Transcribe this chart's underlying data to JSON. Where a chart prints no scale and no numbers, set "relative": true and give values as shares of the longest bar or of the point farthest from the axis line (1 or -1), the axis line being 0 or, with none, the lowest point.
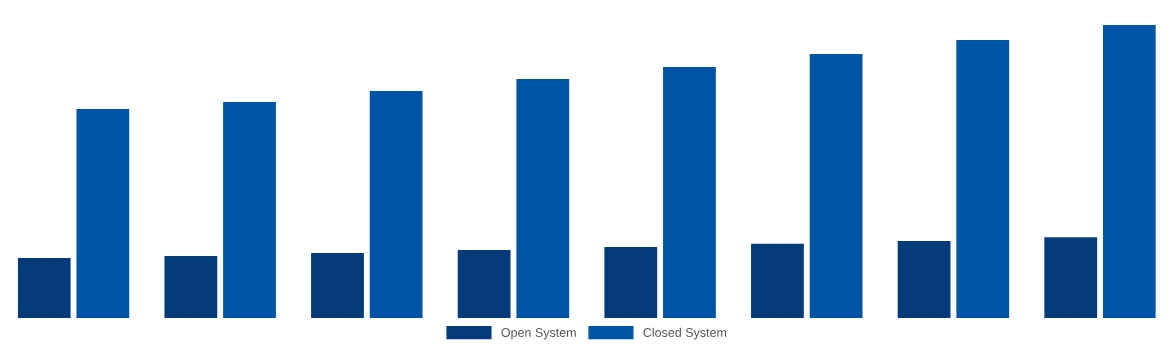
{
  "chart_data": {
    "type": "bar",
    "relative": true,
    "categories": [
      null,
      null,
      null,
      null,
      null,
      null,
      null,
      null
    ],
    "series": [
      {
        "name": "Open System",
        "color": "#023a7a",
        "values": [
          0.205,
          0.212,
          0.222,
          0.232,
          0.242,
          0.253,
          0.263,
          0.276
        ]
      },
      {
        "name": "Closed System",
        "color": "#0054a6",
        "values": [
          0.713,
          0.737,
          0.775,
          0.816,
          0.857,
          0.901,
          0.949,
          1
        ]
      }
    ],
    "legend": "bottom",
    "grid": false
  }
}
